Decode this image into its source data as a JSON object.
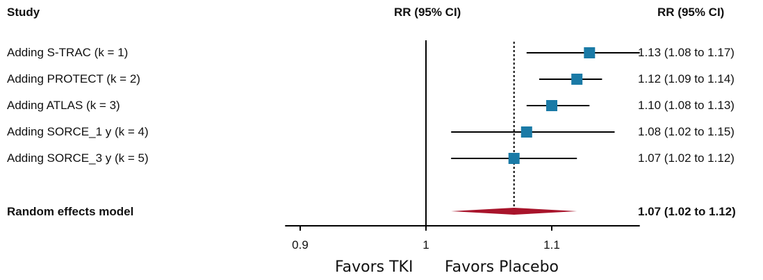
{
  "header": {
    "study": "Study",
    "effect_mid": "RR (95% CI)",
    "effect_right": "RR (95% CI)"
  },
  "rows": [
    {
      "label": "Adding S-TRAC (k = 1)",
      "ci_text": "1.13 (1.08 to 1.17)"
    },
    {
      "label": "Adding PROTECT (k = 2)",
      "ci_text": "1.12 (1.09 to 1.14)"
    },
    {
      "label": "Adding ATLAS (k = 3)",
      "ci_text": "1.10 (1.08 to 1.13)"
    },
    {
      "label": "Adding SORCE_1 y (k = 4)",
      "ci_text": "1.08 (1.02 to 1.15)"
    },
    {
      "label": "Adding SORCE_3 y (k = 5)",
      "ci_text": "1.07 (1.02 to 1.12)"
    }
  ],
  "summary": {
    "label": "Random effects model",
    "ci_text": "1.07 (1.02 to 1.12)"
  },
  "footer": {
    "favors_left": "Favors TKI",
    "favors_right": "Favors Placebo"
  },
  "colors": {
    "square": "#1a7aa6",
    "diamond": "#a8142b",
    "line": "#000000"
  },
  "chart_data": {
    "type": "forest",
    "x_axis": {
      "ticks": [
        0.9,
        1,
        1.1
      ],
      "tick_labels": [
        "0.9",
        "1",
        "1.1"
      ],
      "range": [
        0.888,
        1.17
      ],
      "reference_line": 1,
      "pooled_line": 1.07
    },
    "studies": [
      {
        "estimate": 1.13,
        "lower": 1.08,
        "upper": 1.17
      },
      {
        "estimate": 1.12,
        "lower": 1.09,
        "upper": 1.14
      },
      {
        "estimate": 1.1,
        "lower": 1.08,
        "upper": 1.13
      },
      {
        "estimate": 1.08,
        "lower": 1.02,
        "upper": 1.15
      },
      {
        "estimate": 1.07,
        "lower": 1.02,
        "upper": 1.12
      }
    ],
    "pooled": {
      "estimate": 1.07,
      "lower": 1.02,
      "upper": 1.12
    }
  }
}
